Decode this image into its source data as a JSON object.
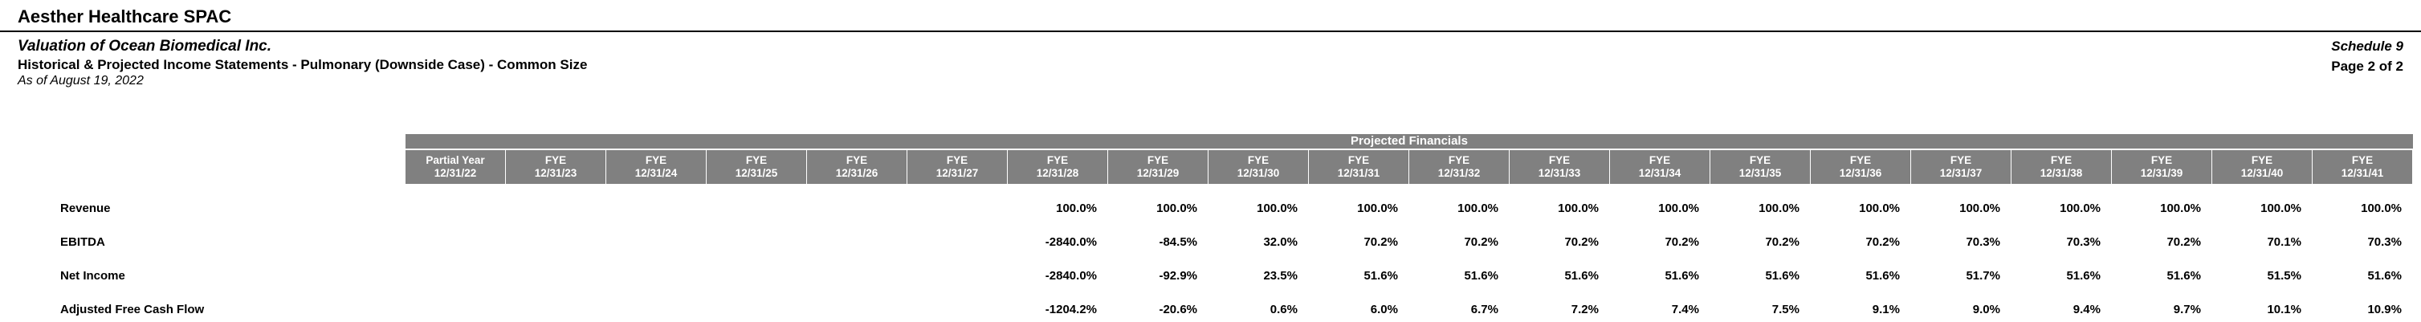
{
  "page": {
    "company": "Aesther Healthcare SPAC",
    "valuation_title": "Valuation of Ocean Biomedical Inc.",
    "statement_title": "Historical & Projected Income Statements - Pulmonary (Downside Case) - Common Size",
    "as_of_date": "As of August 19, 2022",
    "schedule_label": "Schedule 9",
    "page_label": "Page 2 of 2"
  },
  "table": {
    "band_title": "Projected Financials",
    "columns": [
      {
        "period": "Partial Year",
        "date": "12/31/22"
      },
      {
        "period": "FYE",
        "date": "12/31/23"
      },
      {
        "period": "FYE",
        "date": "12/31/24"
      },
      {
        "period": "FYE",
        "date": "12/31/25"
      },
      {
        "period": "FYE",
        "date": "12/31/26"
      },
      {
        "period": "FYE",
        "date": "12/31/27"
      },
      {
        "period": "FYE",
        "date": "12/31/28"
      },
      {
        "period": "FYE",
        "date": "12/31/29"
      },
      {
        "period": "FYE",
        "date": "12/31/30"
      },
      {
        "period": "FYE",
        "date": "12/31/31"
      },
      {
        "period": "FYE",
        "date": "12/31/32"
      },
      {
        "period": "FYE",
        "date": "12/31/33"
      },
      {
        "period": "FYE",
        "date": "12/31/34"
      },
      {
        "period": "FYE",
        "date": "12/31/35"
      },
      {
        "period": "FYE",
        "date": "12/31/36"
      },
      {
        "period": "FYE",
        "date": "12/31/37"
      },
      {
        "period": "FYE",
        "date": "12/31/38"
      },
      {
        "period": "FYE",
        "date": "12/31/39"
      },
      {
        "period": "FYE",
        "date": "12/31/40"
      },
      {
        "period": "FYE",
        "date": "12/31/41"
      }
    ],
    "rows": [
      {
        "label": "Revenue",
        "values": [
          "",
          "",
          "",
          "",
          "",
          "",
          "100.0%",
          "100.0%",
          "100.0%",
          "100.0%",
          "100.0%",
          "100.0%",
          "100.0%",
          "100.0%",
          "100.0%",
          "100.0%",
          "100.0%",
          "100.0%",
          "100.0%",
          "100.0%"
        ]
      },
      {
        "label": "EBITDA",
        "values": [
          "",
          "",
          "",
          "",
          "",
          "",
          "-2840.0%",
          "-84.5%",
          "32.0%",
          "70.2%",
          "70.2%",
          "70.2%",
          "70.2%",
          "70.2%",
          "70.2%",
          "70.3%",
          "70.3%",
          "70.2%",
          "70.1%",
          "70.3%"
        ]
      },
      {
        "label": "Net Income",
        "values": [
          "",
          "",
          "",
          "",
          "",
          "",
          "-2840.0%",
          "-92.9%",
          "23.5%",
          "51.6%",
          "51.6%",
          "51.6%",
          "51.6%",
          "51.6%",
          "51.6%",
          "51.7%",
          "51.6%",
          "51.6%",
          "51.5%",
          "51.6%"
        ]
      },
      {
        "label": "Adjusted Free Cash Flow",
        "values": [
          "",
          "",
          "",
          "",
          "",
          "",
          "-1204.2%",
          "-20.6%",
          "0.6%",
          "6.0%",
          "6.7%",
          "7.2%",
          "7.4%",
          "7.5%",
          "9.1%",
          "9.0%",
          "9.4%",
          "9.7%",
          "10.1%",
          "10.9%"
        ]
      }
    ]
  },
  "colors": {
    "header_band_bg": "#808080",
    "header_band_text": "#ffffff",
    "rule_color": "#000000"
  }
}
